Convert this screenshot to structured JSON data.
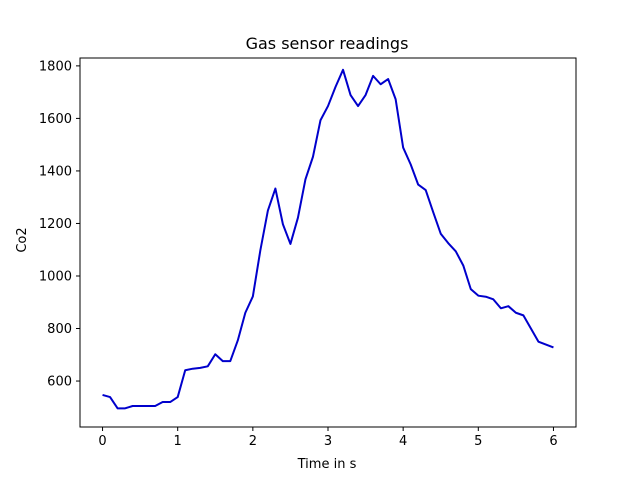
{
  "chart_data": {
    "type": "line",
    "title": "Gas sensor readings",
    "xlabel": "Time in s",
    "ylabel": "Co2",
    "xlim": [
      -0.3,
      6.3
    ],
    "ylim": [
      425,
      1830
    ],
    "xticks": [
      0,
      1,
      2,
      3,
      4,
      5,
      6
    ],
    "yticks": [
      600,
      800,
      1000,
      1200,
      1400,
      1600,
      1800
    ],
    "grid": false,
    "series": [
      {
        "color": "#0000cc",
        "x": [
          0,
          0.1,
          0.2,
          0.3,
          0.4,
          0.5,
          0.6,
          0.7,
          0.8,
          0.9,
          1.0,
          1.1,
          1.2,
          1.3,
          1.4,
          1.5,
          1.6,
          1.7,
          1.8,
          1.9,
          2.0,
          2.1,
          2.2,
          2.3,
          2.4,
          2.5,
          2.6,
          2.7,
          2.8,
          2.9,
          3.0,
          3.1,
          3.2,
          3.3,
          3.4,
          3.5,
          3.6,
          3.7,
          3.8,
          3.9,
          4.0,
          4.1,
          4.2,
          4.3,
          4.4,
          4.5,
          4.6,
          4.7,
          4.8,
          4.9,
          5.0,
          5.1,
          5.2,
          5.3,
          5.4,
          5.5,
          5.6,
          5.7,
          5.8,
          6.0
        ],
        "y": [
          547,
          539,
          496,
          496,
          505,
          505,
          505,
          505,
          520,
          520,
          539,
          641,
          647,
          650,
          656,
          702,
          676,
          676,
          755,
          860,
          922,
          1098,
          1249,
          1333,
          1197,
          1122,
          1222,
          1368,
          1454,
          1593,
          1647,
          1720,
          1785,
          1689,
          1647,
          1689,
          1762,
          1730,
          1750,
          1673,
          1489,
          1425,
          1348,
          1327,
          1243,
          1161,
          1125,
          1094,
          1040,
          950,
          925,
          921,
          911,
          877,
          885,
          860,
          850,
          800,
          750,
          728
        ]
      }
    ]
  }
}
